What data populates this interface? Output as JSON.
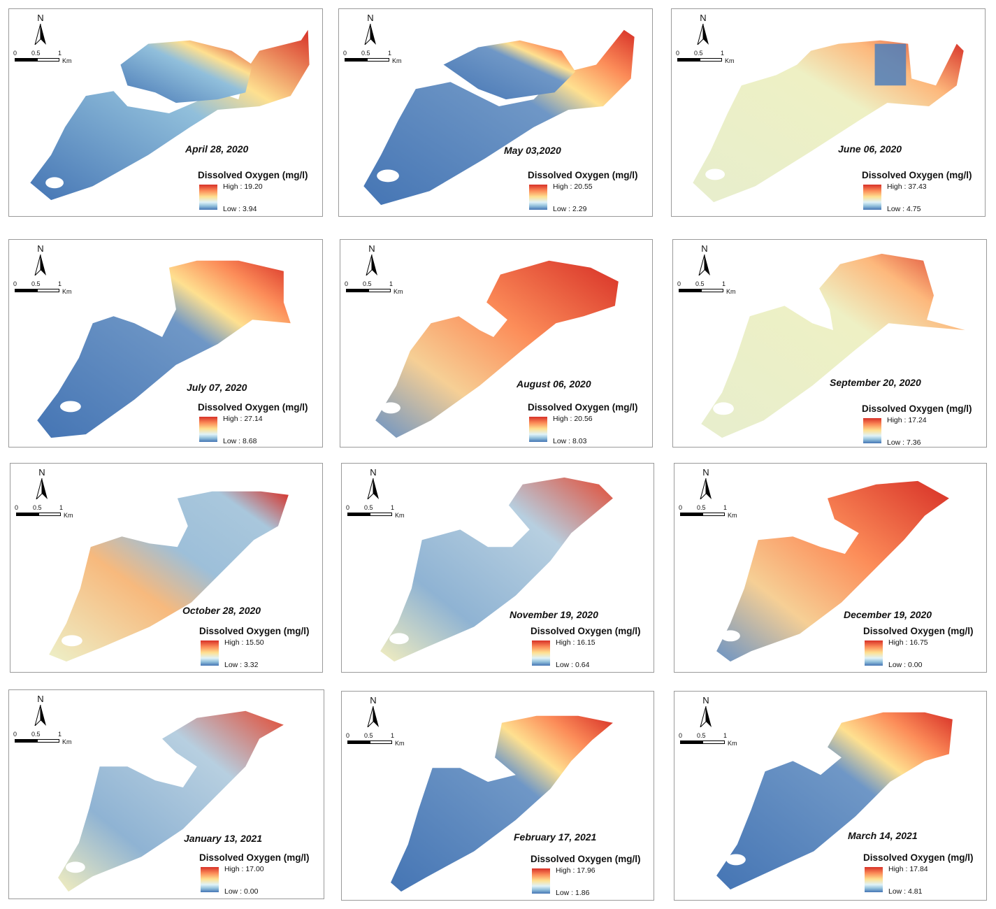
{
  "figure": {
    "north_label": "N",
    "scale_ticks": [
      "0",
      "0.5",
      "1"
    ],
    "scale_unit": "Km",
    "legend_title": "Dissolved Oxygen (mg/l)",
    "ramp_colors": [
      "#d73027",
      "#fc8d59",
      "#fee090",
      "#e0f3f8",
      "#91bfdb",
      "#4575b4"
    ]
  },
  "panels": [
    {
      "date": "April 28, 2020",
      "high": "High : 19.20",
      "low": "Low : 3.94"
    },
    {
      "date": "May 03,2020",
      "high": "High : 20.55",
      "low": "Low : 2.29"
    },
    {
      "date": "June 06, 2020",
      "high": "High : 37.43",
      "low": "Low : 4.75"
    },
    {
      "date": "July 07, 2020",
      "high": "High : 27.14",
      "low": "Low : 8.68"
    },
    {
      "date": "August 06, 2020",
      "high": "High : 20.56",
      "low": "Low : 8.03"
    },
    {
      "date": "September 20, 2020",
      "high": "High : 17.24",
      "low": "Low : 7.36"
    },
    {
      "date": "October  28, 2020",
      "high": "High : 15.50",
      "low": "Low : 3.32"
    },
    {
      "date": "November 19, 2020",
      "high": "High : 16.15",
      "low": "Low : 0.64"
    },
    {
      "date": "December 19, 2020",
      "high": "High : 16.75",
      "low": "Low : 0.00"
    },
    {
      "date": "January 13, 2021",
      "high": "High : 17.00",
      "low": "Low : 0.00"
    },
    {
      "date": "February 17, 2021",
      "high": "High : 17.96",
      "low": "Low : 1.86"
    },
    {
      "date": "March 14, 2021",
      "high": "High : 17.84",
      "low": "Low : 4.81"
    }
  ]
}
